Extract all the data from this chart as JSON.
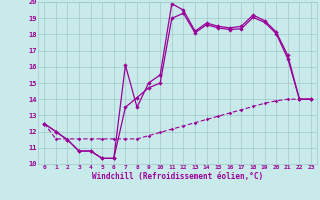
{
  "xlabel": "Windchill (Refroidissement éolien,°C)",
  "bg_color": "#c8eaea",
  "grid_color": "#a0c8c8",
  "line_color": "#990099",
  "xlim": [
    -0.5,
    23.5
  ],
  "ylim": [
    10,
    20
  ],
  "xticks": [
    0,
    1,
    2,
    3,
    4,
    5,
    6,
    7,
    8,
    9,
    10,
    11,
    12,
    13,
    14,
    15,
    16,
    17,
    18,
    19,
    20,
    21,
    22,
    23
  ],
  "yticks": [
    10,
    11,
    12,
    13,
    14,
    15,
    16,
    17,
    18,
    19,
    20
  ],
  "line1_x": [
    0,
    1,
    2,
    3,
    4,
    5,
    6,
    7,
    8,
    9,
    10,
    11,
    12,
    13,
    14,
    15,
    16,
    17,
    18,
    19,
    20,
    21,
    22,
    23
  ],
  "line1_y": [
    12.5,
    12.0,
    11.5,
    10.8,
    10.8,
    10.35,
    10.35,
    16.1,
    13.5,
    15.0,
    15.5,
    19.9,
    19.5,
    18.2,
    18.7,
    18.5,
    18.4,
    18.5,
    19.2,
    18.85,
    18.15,
    16.7,
    14.0,
    14.0
  ],
  "line2_x": [
    0,
    1,
    2,
    3,
    4,
    5,
    6,
    7,
    8,
    9,
    10,
    11,
    12,
    13,
    14,
    15,
    16,
    17,
    18,
    19,
    20,
    21,
    22,
    23
  ],
  "line2_y": [
    12.5,
    12.0,
    11.5,
    10.8,
    10.8,
    10.35,
    10.35,
    13.5,
    14.1,
    14.7,
    15.0,
    19.0,
    19.3,
    18.1,
    18.6,
    18.4,
    18.3,
    18.35,
    19.05,
    18.75,
    18.05,
    16.5,
    14.0,
    14.0
  ],
  "line3_x": [
    0,
    1,
    2,
    3,
    4,
    5,
    6,
    7,
    8,
    9,
    10,
    11,
    12,
    13,
    14,
    15,
    16,
    17,
    18,
    19,
    20,
    21,
    22,
    23
  ],
  "line3_y": [
    12.5,
    11.55,
    11.55,
    11.55,
    11.55,
    11.55,
    11.55,
    11.55,
    11.55,
    11.75,
    11.95,
    12.15,
    12.35,
    12.55,
    12.75,
    12.95,
    13.15,
    13.35,
    13.55,
    13.75,
    13.9,
    14.0,
    14.0,
    14.0
  ]
}
